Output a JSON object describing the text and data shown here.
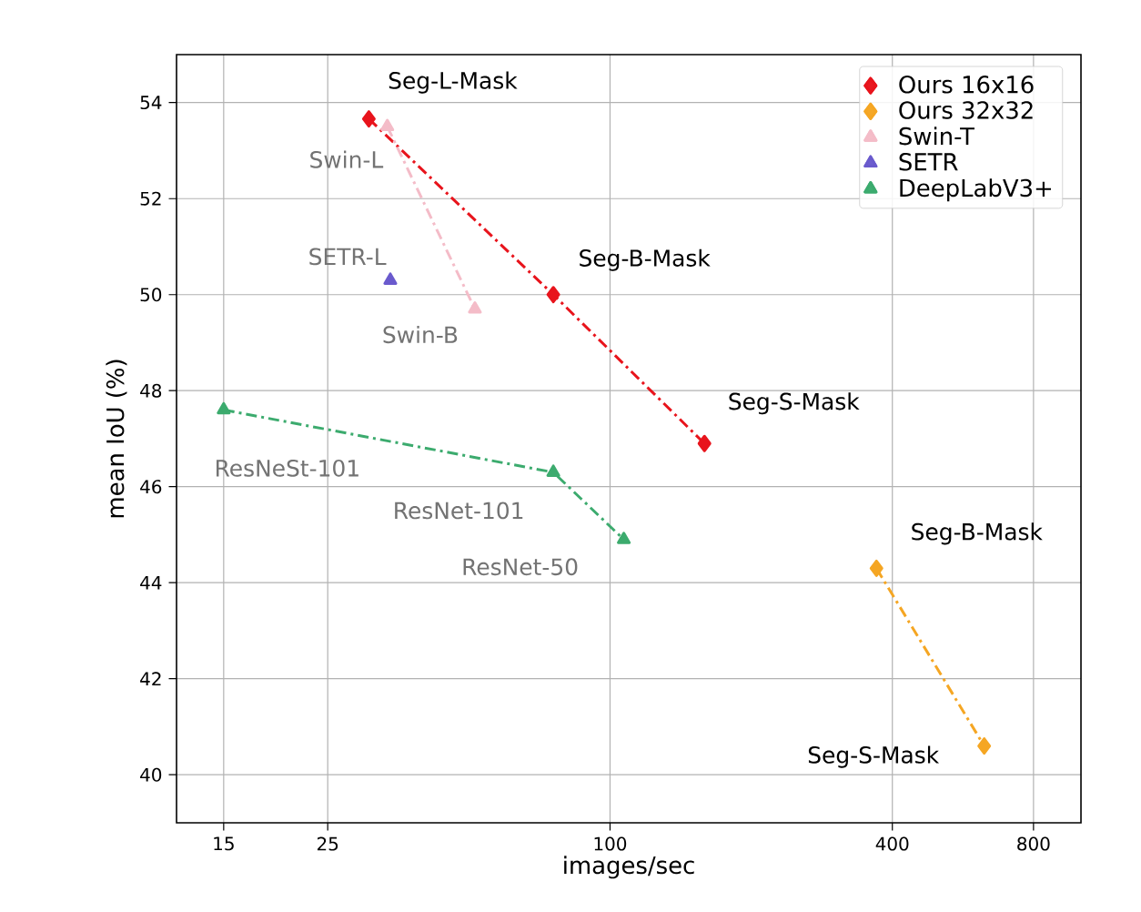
{
  "chart_data": {
    "type": "line",
    "xlabel": "images/sec",
    "ylabel": "mean IoU (%)",
    "log": "x",
    "xlim": [
      11.9,
      1010
    ],
    "ylim": [
      39,
      55
    ],
    "xticks": [
      15,
      25,
      100,
      400,
      800
    ],
    "yticks": [
      40,
      42,
      44,
      46,
      48,
      50,
      52,
      54
    ],
    "grid": true,
    "legend": "top right",
    "line_style": "dashdot",
    "series": [
      {
        "name": "Ours 16x16",
        "color": "#e8141c",
        "marker": "diamond",
        "x": [
          30.6,
          75.7,
          159
        ],
        "values": [
          53.66,
          50.0,
          46.9
        ]
      },
      {
        "name": "Ours 32x32",
        "color": "#f5a623",
        "marker": "diamond",
        "x": [
          370,
          628
        ],
        "values": [
          44.3,
          40.6
        ]
      },
      {
        "name": "Swin-T",
        "color": "#f4bcc8",
        "marker": "triangle",
        "x": [
          33.5,
          51.5
        ],
        "values": [
          53.5,
          49.7
        ]
      },
      {
        "name": "SETR",
        "color": "#6a5acd",
        "marker": "triangle",
        "x": [
          34
        ],
        "values": [
          50.3
        ]
      },
      {
        "name": "DeepLabV3+",
        "color": "#3cab6e",
        "marker": "triangle",
        "x": [
          15,
          75.7,
          107
        ],
        "values": [
          47.6,
          46.3,
          44.9
        ]
      }
    ],
    "annotations": [
      {
        "text": "Seg-L-Mask",
        "x": 30.6,
        "y": 53.66
      },
      {
        "text": "Seg-B-Mask",
        "x": 75.7,
        "y": 50.0
      },
      {
        "text": "Seg-S-Mask",
        "x": 159,
        "y": 46.9
      },
      {
        "text": "Seg-B-Mask",
        "x": 370,
        "y": 44.3
      },
      {
        "text": "Seg-S-Mask",
        "x": 628,
        "y": 40.6
      },
      {
        "text": "Swin-L",
        "x": 33.5,
        "y": 53.5
      },
      {
        "text": "Swin-B",
        "x": 51.5,
        "y": 49.7
      },
      {
        "text": "SETR-L",
        "x": 34,
        "y": 50.3
      },
      {
        "text": "ResNeSt-101",
        "x": 15,
        "y": 47.6
      },
      {
        "text": "ResNet-101",
        "x": 75.7,
        "y": 46.3
      },
      {
        "text": "ResNet-50",
        "x": 107,
        "y": 44.9
      }
    ]
  }
}
